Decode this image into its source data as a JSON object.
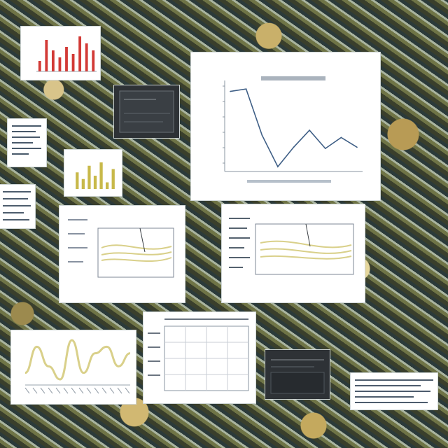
{
  "board": {
    "colors": {
      "paper": "#ffffff",
      "line": "#3f5f86",
      "bar_red": "#d23a36",
      "yellow_series": "#d9d08a",
      "dark_panel": "#2e3236"
    }
  },
  "main_chart": {
    "type": "line",
    "x": [
      1,
      2,
      3,
      4,
      5,
      6,
      7,
      8,
      9
    ],
    "values": [
      8.6,
      8.8,
      5.0,
      2.4,
      4.0,
      5.4,
      3.9,
      4.8,
      4.0
    ],
    "ylim": [
      2,
      9.5
    ],
    "grid": false
  },
  "red_bar_chart": {
    "type": "bar",
    "values": [
      3,
      9,
      6,
      4,
      7,
      5,
      10,
      8,
      6
    ]
  },
  "yellow_bar_chart": {
    "type": "bar",
    "values": [
      5,
      3,
      7,
      4,
      8,
      2,
      6
    ]
  },
  "wave_chart": {
    "type": "line",
    "values": [
      2,
      6,
      3,
      1,
      7,
      2,
      5,
      6,
      3,
      5
    ]
  }
}
